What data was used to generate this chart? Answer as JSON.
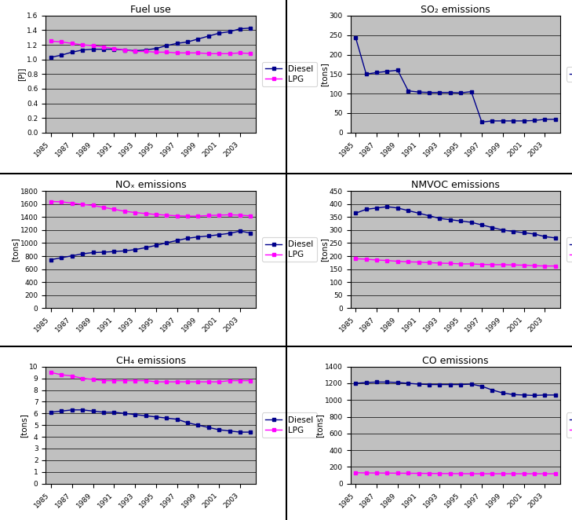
{
  "years": [
    1985,
    1986,
    1987,
    1988,
    1989,
    1990,
    1991,
    1992,
    1993,
    1994,
    1995,
    1996,
    1997,
    1998,
    1999,
    2000,
    2001,
    2002,
    2003,
    2004
  ],
  "fuel_diesel": [
    1.03,
    1.06,
    1.1,
    1.13,
    1.14,
    1.14,
    1.14,
    1.13,
    1.12,
    1.13,
    1.15,
    1.19,
    1.22,
    1.24,
    1.28,
    1.32,
    1.36,
    1.38,
    1.42,
    1.43
  ],
  "fuel_lpg": [
    1.25,
    1.24,
    1.22,
    1.2,
    1.19,
    1.17,
    1.15,
    1.13,
    1.11,
    1.11,
    1.1,
    1.1,
    1.09,
    1.09,
    1.09,
    1.08,
    1.08,
    1.08,
    1.09,
    1.08
  ],
  "so2_diesel": [
    243,
    150,
    154,
    157,
    160,
    107,
    104,
    103,
    103,
    103,
    102,
    105,
    27,
    30,
    30,
    30,
    30,
    31,
    34,
    34
  ],
  "nox_diesel": [
    745,
    775,
    805,
    835,
    855,
    860,
    870,
    880,
    900,
    930,
    965,
    1005,
    1040,
    1075,
    1095,
    1110,
    1130,
    1150,
    1185,
    1155
  ],
  "nox_lpg": [
    1640,
    1635,
    1615,
    1595,
    1580,
    1550,
    1520,
    1490,
    1470,
    1455,
    1440,
    1430,
    1420,
    1415,
    1415,
    1425,
    1430,
    1435,
    1430,
    1420
  ],
  "nmvoc_diesel": [
    365,
    380,
    385,
    390,
    385,
    375,
    365,
    355,
    345,
    340,
    335,
    330,
    320,
    310,
    300,
    295,
    290,
    285,
    275,
    270
  ],
  "nmvoc_lpg": [
    190,
    188,
    185,
    183,
    180,
    178,
    177,
    175,
    173,
    172,
    170,
    170,
    168,
    167,
    167,
    166,
    165,
    163,
    162,
    162
  ],
  "ch4_diesel": [
    6.1,
    6.2,
    6.3,
    6.3,
    6.2,
    6.1,
    6.1,
    6.0,
    5.9,
    5.8,
    5.7,
    5.6,
    5.5,
    5.2,
    5.0,
    4.8,
    4.6,
    4.5,
    4.4,
    4.4
  ],
  "ch4_lpg": [
    9.5,
    9.3,
    9.2,
    9.0,
    8.9,
    8.8,
    8.8,
    8.8,
    8.8,
    8.8,
    8.7,
    8.7,
    8.7,
    8.7,
    8.7,
    8.7,
    8.7,
    8.8,
    8.8,
    8.8
  ],
  "co_diesel": [
    1200,
    1210,
    1215,
    1215,
    1210,
    1200,
    1190,
    1185,
    1185,
    1185,
    1185,
    1190,
    1165,
    1120,
    1085,
    1065,
    1060,
    1055,
    1060,
    1060
  ],
  "co_lpg": [
    130,
    128,
    127,
    126,
    125,
    124,
    123,
    122,
    121,
    120,
    119,
    118,
    118,
    118,
    118,
    118,
    118,
    118,
    118,
    118
  ],
  "diesel_color": "#00008B",
  "lpg_color": "#FF00FF",
  "plot_bg": "#C0C0C0",
  "title_fontsize": 9,
  "tick_fontsize": 6.5,
  "label_fontsize": 7.5,
  "legend_fontsize": 7.5
}
